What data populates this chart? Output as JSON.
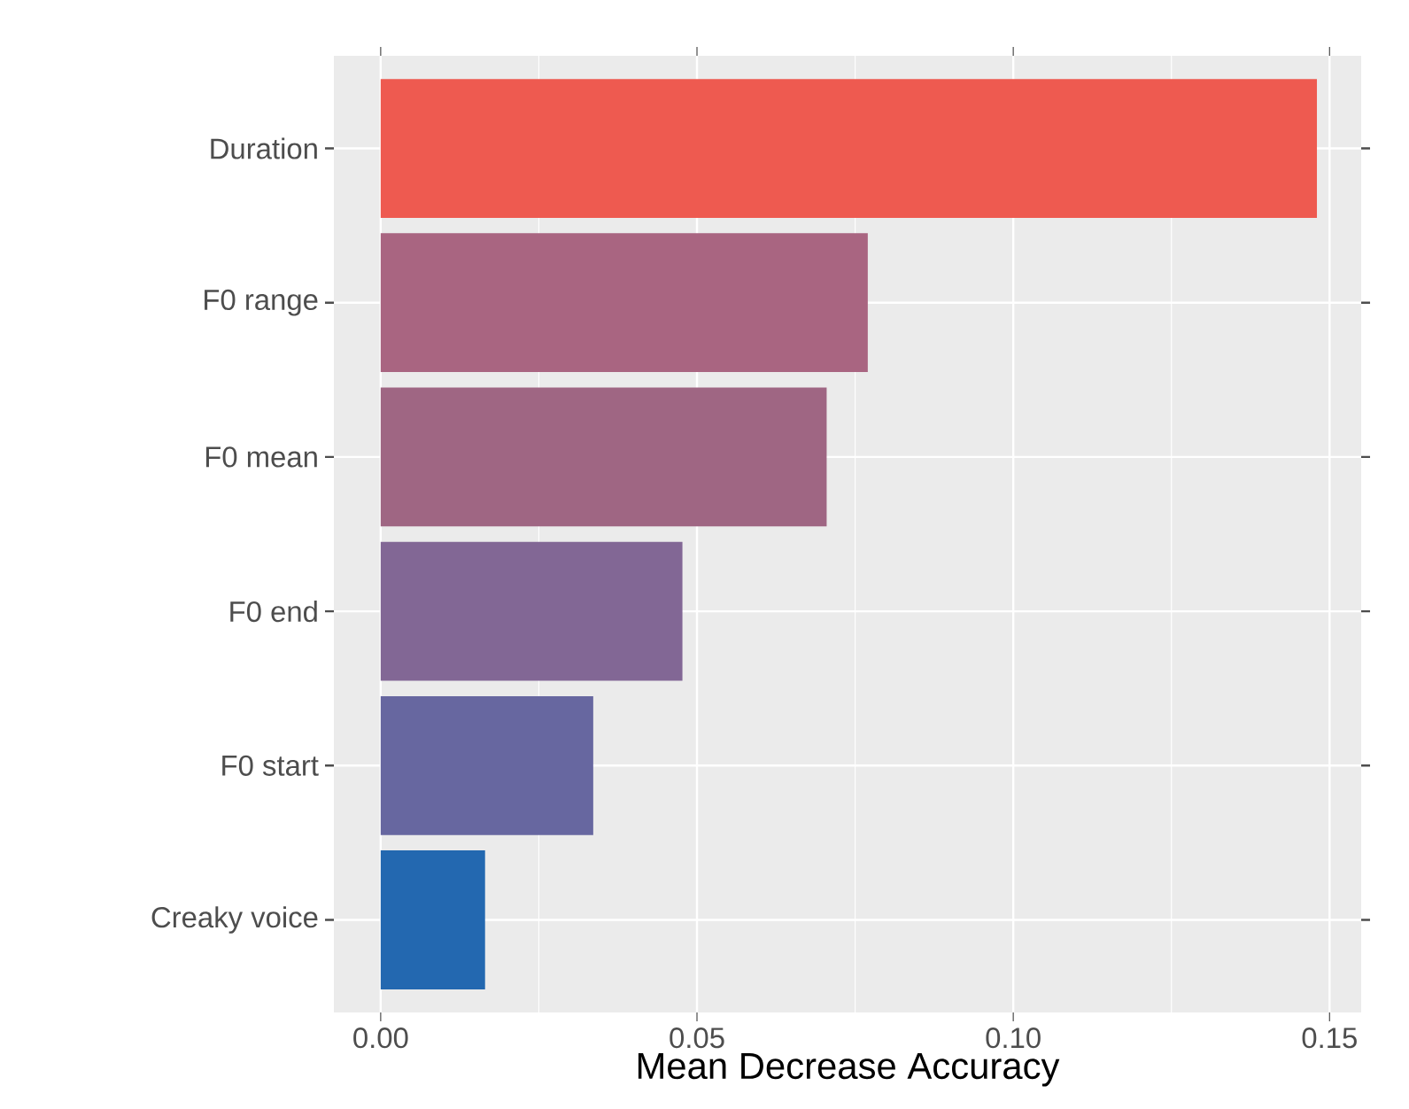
{
  "chart_data": {
    "type": "bar",
    "orientation": "horizontal",
    "xlabel": "Mean Decrease Accuracy",
    "categories": [
      "Duration",
      "F0 range",
      "F0 mean",
      "F0 end",
      "F0 start",
      "Creaky voice"
    ],
    "values": [
      0.148,
      0.077,
      0.0705,
      0.0477,
      0.0336,
      0.0165
    ],
    "colors": [
      "#ee5a50",
      "#a96581",
      "#9f6683",
      "#826795",
      "#6767a0",
      "#2368b0"
    ],
    "xlim": [
      -0.0074,
      0.155
    ],
    "xticks": [
      {
        "value": 0,
        "label": "0.00"
      },
      {
        "value": 0.05,
        "label": "0.05"
      },
      {
        "value": 0.1,
        "label": "0.10"
      },
      {
        "value": 0.15,
        "label": "0.15"
      }
    ],
    "grid": true
  }
}
